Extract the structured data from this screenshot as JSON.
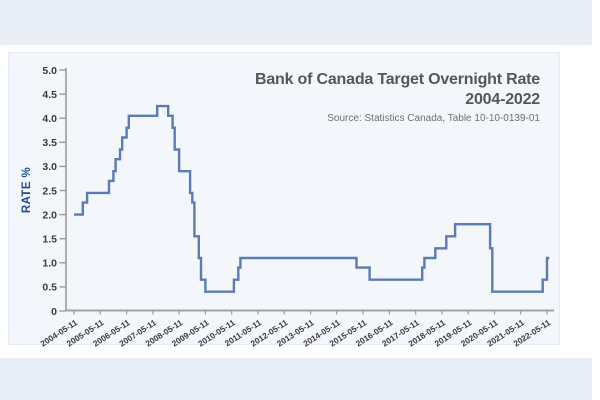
{
  "chart_data": {
    "type": "line",
    "step": true,
    "title_line1": "Bank of Canada Target Overnight Rate",
    "title_line2": "2004-2022",
    "source": "Source: Statistics Canada, Table 10-10-0139-01",
    "ylabel": "RATE %",
    "ylim": [
      0,
      5
    ],
    "y_tick_step": 0.5,
    "grid": false,
    "legend": "none",
    "line_color": "#5b7cb2",
    "x_tick_labels": [
      "2004-05-11",
      "2005-05-11",
      "2006-05-11",
      "2007-05-11",
      "2008-05-11",
      "2009-05-11",
      "2010-05-11",
      "2011-05-11",
      "2012-05-11",
      "2013-05-11",
      "2014-05-11",
      "2015-05-11",
      "2016-05-11",
      "2017-05-11",
      "2018-05-11",
      "2019-05-11",
      "2020-05-11",
      "2021-05-11",
      "2022-05-11"
    ],
    "x_start": "2004-05",
    "x_end": "2022-05",
    "segments": [
      {
        "from": "2004-05",
        "to": "2004-08",
        "rate": 2.0
      },
      {
        "from": "2004-09",
        "to": "2004-10",
        "rate": 2.25
      },
      {
        "from": "2004-11",
        "to": "2005-08",
        "rate": 2.45
      },
      {
        "from": "2005-09",
        "to": "2005-10",
        "rate": 2.7
      },
      {
        "from": "2005-11",
        "to": "2005-11",
        "rate": 2.9
      },
      {
        "from": "2005-12",
        "to": "2006-01",
        "rate": 3.15
      },
      {
        "from": "2006-02",
        "to": "2006-02",
        "rate": 3.35
      },
      {
        "from": "2006-03",
        "to": "2006-04",
        "rate": 3.6
      },
      {
        "from": "2006-05",
        "to": "2006-05",
        "rate": 3.8
      },
      {
        "from": "2006-06",
        "to": "2007-06",
        "rate": 4.05
      },
      {
        "from": "2007-07",
        "to": "2007-11",
        "rate": 4.25
      },
      {
        "from": "2007-12",
        "to": "2008-01",
        "rate": 4.05
      },
      {
        "from": "2008-02",
        "to": "2008-02",
        "rate": 3.8
      },
      {
        "from": "2008-03",
        "to": "2008-04",
        "rate": 3.35
      },
      {
        "from": "2008-05",
        "to": "2008-09",
        "rate": 2.9
      },
      {
        "from": "2008-10",
        "to": "2008-10",
        "rate": 2.45
      },
      {
        "from": "2008-11",
        "to": "2008-11",
        "rate": 2.25
      },
      {
        "from": "2008-12",
        "to": "2009-01",
        "rate": 1.55
      },
      {
        "from": "2009-02",
        "to": "2009-02",
        "rate": 1.1
      },
      {
        "from": "2009-03",
        "to": "2009-04",
        "rate": 0.65
      },
      {
        "from": "2009-05",
        "to": "2010-05",
        "rate": 0.4
      },
      {
        "from": "2010-06",
        "to": "2010-07",
        "rate": 0.65
      },
      {
        "from": "2010-08",
        "to": "2010-08",
        "rate": 0.9
      },
      {
        "from": "2010-09",
        "to": "2015-01",
        "rate": 1.1
      },
      {
        "from": "2015-02",
        "to": "2015-07",
        "rate": 0.9
      },
      {
        "from": "2015-08",
        "to": "2017-07",
        "rate": 0.65
      },
      {
        "from": "2017-08",
        "to": "2017-08",
        "rate": 0.9
      },
      {
        "from": "2017-09",
        "to": "2018-01",
        "rate": 1.1
      },
      {
        "from": "2018-02",
        "to": "2018-06",
        "rate": 1.3
      },
      {
        "from": "2018-07",
        "to": "2018-10",
        "rate": 1.55
      },
      {
        "from": "2018-11",
        "to": "2020-02",
        "rate": 1.8
      },
      {
        "from": "2020-03",
        "to": "2020-03",
        "rate": 1.3
      },
      {
        "from": "2020-04",
        "to": "2022-02",
        "rate": 0.4
      },
      {
        "from": "2022-03",
        "to": "2022-04",
        "rate": 0.65
      },
      {
        "from": "2022-05",
        "to": "2022-05",
        "rate": 1.1
      }
    ],
    "colors": {
      "background_strip": "#e9eef6",
      "panel": "#f3f6fa",
      "axis": "#9b9b9b",
      "tick_text": "#3b3b3d",
      "title_text": "#55565a",
      "source_text": "#6e6f72",
      "y_axis_title_text": "#1c4d90"
    }
  }
}
